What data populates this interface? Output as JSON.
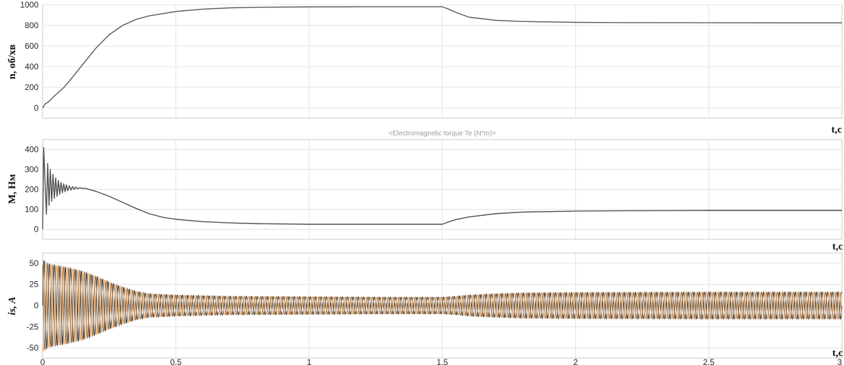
{
  "chart_data": [
    {
      "type": "line",
      "ylabel": "n, об/хв",
      "tlabel": "t,c",
      "xlim": [
        0,
        3
      ],
      "ylim": [
        -100,
        1000
      ],
      "yticks": [
        "1000",
        "800",
        "600",
        "400",
        "200",
        "0"
      ],
      "ytick_values": [
        1000,
        800,
        600,
        400,
        200,
        0
      ],
      "xticks": [
        0,
        0.5,
        1,
        1.5,
        2,
        2.5,
        3
      ],
      "grid": true,
      "series": [
        {
          "color": "#595959",
          "x": [
            0,
            0.01,
            0.02,
            0.03,
            0.05,
            0.08,
            0.1,
            0.15,
            0.2,
            0.25,
            0.3,
            0.35,
            0.4,
            0.5,
            0.6,
            0.7,
            0.8,
            1.0,
            1.2,
            1.4,
            1.5,
            1.52,
            1.55,
            1.6,
            1.7,
            1.8,
            2.0,
            2.2,
            2.5,
            2.8,
            3.0
          ],
          "y": [
            0,
            40,
            55,
            80,
            130,
            200,
            260,
            420,
            580,
            710,
            800,
            858,
            893,
            935,
            958,
            970,
            976,
            980,
            981,
            981,
            981,
            962,
            928,
            880,
            850,
            838,
            830,
            827,
            826,
            825,
            825
          ]
        }
      ]
    },
    {
      "type": "line",
      "title": "<Electromagnelic torque Te (N*m)>",
      "ylabel": "M, Нм",
      "tlabel": "t,c",
      "xlim": [
        0,
        3
      ],
      "ylim": [
        -50,
        450
      ],
      "yticks": [
        "400",
        "300",
        "200",
        "100",
        "0"
      ],
      "ytick_values": [
        400,
        300,
        200,
        100,
        0
      ],
      "xticks": [
        0,
        0.5,
        1,
        1.5,
        2,
        2.5,
        3
      ],
      "grid": true,
      "series": [
        {
          "color": "#4d4d4d",
          "x": [
            0,
            0.004,
            0.009,
            0.014,
            0.019,
            0.024,
            0.029,
            0.034,
            0.039,
            0.044,
            0.049,
            0.054,
            0.059,
            0.064,
            0.069,
            0.074,
            0.079,
            0.084,
            0.089,
            0.094,
            0.1,
            0.106,
            0.112,
            0.118,
            0.124,
            0.13,
            0.14,
            0.15,
            0.16,
            0.18,
            0.2,
            0.25,
            0.3,
            0.35,
            0.4,
            0.45,
            0.5,
            0.6,
            0.7,
            0.8,
            1.0,
            1.2,
            1.4,
            1.5,
            1.52,
            1.55,
            1.6,
            1.7,
            1.8,
            2.0,
            2.2,
            2.5,
            2.8,
            3.0
          ],
          "y": [
            0,
            410,
            240,
            75,
            330,
            120,
            300,
            140,
            275,
            155,
            258,
            165,
            245,
            175,
            235,
            183,
            228,
            188,
            223,
            193,
            218,
            197,
            214,
            200,
            212,
            203,
            208,
            205,
            205,
            198,
            190,
            165,
            135,
            105,
            78,
            60,
            50,
            38,
            32,
            28,
            25,
            25,
            25,
            25,
            35,
            48,
            62,
            78,
            86,
            91,
            93,
            94,
            94,
            94
          ]
        }
      ]
    },
    {
      "type": "line",
      "ylabel": "is, A",
      "tlabel": "t,c",
      "xlim": [
        0,
        3
      ],
      "ylim": [
        -62,
        62
      ],
      "yticks": [
        "50",
        "25",
        "0",
        "-25",
        "-50"
      ],
      "ytick_values": [
        50,
        25,
        0,
        -25,
        -50
      ],
      "xticks": [
        0,
        0.5,
        1,
        1.5,
        2,
        2.5,
        3
      ],
      "xtick_labels": [
        "0",
        "0.5",
        "1",
        "1.5",
        "2",
        "2.5",
        "3"
      ],
      "grid": true,
      "frequency_hz": 50,
      "phases": 3,
      "series": [
        {
          "color": "#1f1f1f"
        },
        {
          "color": "#e8a35a"
        },
        {
          "color": "#8a5a2b"
        }
      ],
      "envelope": {
        "t": [
          0,
          0.02,
          0.05,
          0.1,
          0.15,
          0.2,
          0.25,
          0.3,
          0.35,
          0.4,
          0.5,
          0.7,
          1.0,
          1.3,
          1.5,
          1.55,
          1.6,
          1.7,
          1.8,
          2.0,
          2.5,
          3.0
        ],
        "amp": [
          55,
          50,
          48,
          45,
          41,
          35,
          28,
          22,
          17,
          14,
          12.5,
          11,
          10.5,
          10,
          10,
          11,
          12.5,
          14,
          15,
          15.5,
          16,
          16
        ]
      }
    }
  ]
}
